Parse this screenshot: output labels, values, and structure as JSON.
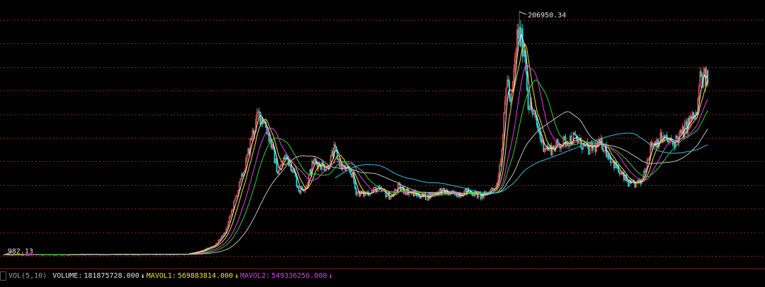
{
  "colors": {
    "background": "#000000",
    "grid": "#8a1f1f",
    "up": "#e05656",
    "down": "#33d6d6",
    "ma5": "#f0f0f0",
    "ma10": "#f0e030",
    "ma20": "#e040e0",
    "ma30": "#30d030",
    "ma60": "#c0c0c0",
    "ma120": "#30c0e0",
    "label_text": "#e0e0e0"
  },
  "price_labels": {
    "high": "206950.34",
    "low": "982.13"
  },
  "indicator_bar": {
    "tag": "VOL(5,10)",
    "volume_label": "VOLUME:",
    "volume_value": "181875728.000",
    "volume_arrow": "↓",
    "mavol1_label": "MAVOL1:",
    "mavol1_value": "569883814.000",
    "mavol1_arrow": "↓",
    "mavol2_label": "MAVOL2:",
    "mavol2_value": "549336256.000",
    "mavol2_arrow": "↓"
  },
  "chart_data": {
    "type": "candlestick",
    "y_range": [
      0,
      212000
    ],
    "grid": true,
    "grid_levels": [
      0,
      20000,
      40000,
      60000,
      80000,
      100000,
      120000,
      140000,
      160000,
      180000,
      200000
    ],
    "price_anchors": [
      [
        0,
        982
      ],
      [
        0.26,
        1400
      ],
      [
        0.28,
        4000
      ],
      [
        0.3,
        9000
      ],
      [
        0.315,
        20000
      ],
      [
        0.325,
        40000
      ],
      [
        0.335,
        60000
      ],
      [
        0.345,
        80000
      ],
      [
        0.352,
        100000
      ],
      [
        0.362,
        120000
      ],
      [
        0.37,
        115000
      ],
      [
        0.38,
        95000
      ],
      [
        0.39,
        70000
      ],
      [
        0.4,
        85000
      ],
      [
        0.41,
        75000
      ],
      [
        0.42,
        55000
      ],
      [
        0.43,
        60000
      ],
      [
        0.44,
        80000
      ],
      [
        0.46,
        75000
      ],
      [
        0.47,
        90000
      ],
      [
        0.48,
        75000
      ],
      [
        0.495,
        70000
      ],
      [
        0.5,
        55000
      ],
      [
        0.51,
        52000
      ],
      [
        0.53,
        57000
      ],
      [
        0.55,
        50000
      ],
      [
        0.56,
        58000
      ],
      [
        0.58,
        53000
      ],
      [
        0.6,
        50000
      ],
      [
        0.62,
        55000
      ],
      [
        0.64,
        52000
      ],
      [
        0.66,
        55000
      ],
      [
        0.68,
        50000
      ],
      [
        0.7,
        60000
      ],
      [
        0.705,
        80000
      ],
      [
        0.71,
        110000
      ],
      [
        0.715,
        155000
      ],
      [
        0.72,
        125000
      ],
      [
        0.73,
        190000
      ],
      [
        0.74,
        175000
      ],
      [
        0.745,
        130000
      ],
      [
        0.755,
        115000
      ],
      [
        0.765,
        95000
      ],
      [
        0.775,
        90000
      ],
      [
        0.79,
        95000
      ],
      [
        0.81,
        100000
      ],
      [
        0.83,
        90000
      ],
      [
        0.85,
        95000
      ],
      [
        0.86,
        85000
      ],
      [
        0.875,
        70000
      ],
      [
        0.89,
        60000
      ],
      [
        0.905,
        62000
      ],
      [
        0.92,
        95000
      ],
      [
        0.935,
        100000
      ],
      [
        0.95,
        95000
      ],
      [
        0.965,
        105000
      ],
      [
        0.975,
        115000
      ],
      [
        0.985,
        120000
      ],
      [
        0.988,
        150000
      ]
    ],
    "candle_count": 640,
    "high": 206950.34,
    "low": 982.13,
    "moving_averages": [
      "ma5",
      "ma10",
      "ma20",
      "ma30",
      "ma60",
      "ma120"
    ]
  }
}
